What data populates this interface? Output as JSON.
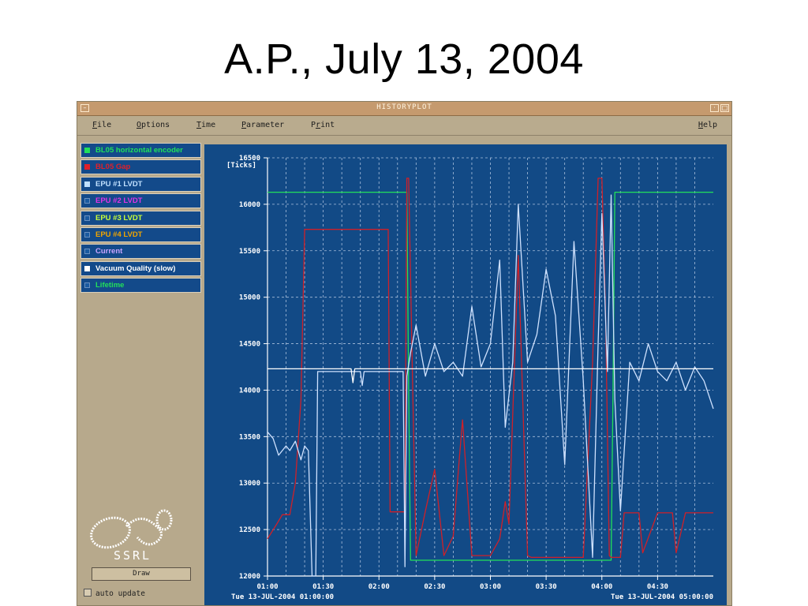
{
  "slide": {
    "title": "A.P., July 13, 2004"
  },
  "window": {
    "title": "HISTORYPLOT",
    "menu": [
      {
        "label": "File"
      },
      {
        "label": "Options"
      },
      {
        "label": "Time"
      },
      {
        "label": "Parameter"
      },
      {
        "label": "Print"
      }
    ],
    "help": "Help"
  },
  "parameters": [
    {
      "label": "BL05 horizontal encoder",
      "color": "#22e05a",
      "checked": true
    },
    {
      "label": "BL05 Gap",
      "color": "#e0202a",
      "checked": true
    },
    {
      "label": "EPU #1 LVDT",
      "color": "#bfe0ff",
      "checked": true
    },
    {
      "label": "EPU #2 LVDT",
      "color": "#e033e6",
      "checked": false
    },
    {
      "label": "EPU #3 LVDT",
      "color": "#c8ff3a",
      "checked": false
    },
    {
      "label": "EPU #4 LVDT",
      "color": "#f0a500",
      "checked": false
    },
    {
      "label": "Current",
      "color": "#c9a4ff",
      "checked": false
    },
    {
      "label": "Vacuum Quality (slow)",
      "color": "#ffffff",
      "checked": true
    },
    {
      "label": "Lifetime",
      "color": "#22e05a",
      "checked": false
    }
  ],
  "logo_text": "SSRL",
  "draw_label": "Draw",
  "auto_update_label": "auto update",
  "chart_data": {
    "type": "line",
    "ylabel": "[Ticks]",
    "ylim": [
      12000,
      16500
    ],
    "yticks": [
      12000,
      12500,
      13000,
      13500,
      14000,
      14500,
      15000,
      15500,
      16000,
      16500
    ],
    "xlim": [
      "01:00",
      "05:00"
    ],
    "xticks": [
      "01:00",
      "01:30",
      "02:00",
      "02:30",
      "03:00",
      "03:30",
      "04:00",
      "04:30"
    ],
    "start_label": "Tue 13-JUL-2004 01:00:00",
    "end_label": "Tue 13-JUL-2004 05:00:00",
    "grid": true,
    "background": "#124a86",
    "series": [
      {
        "name": "BL05 horizontal encoder",
        "color": "#22e05a",
        "x": [
          "01:00",
          "02:15",
          "02:16",
          "02:17",
          "04:05",
          "04:06",
          "04:07",
          "05:00"
        ],
        "y": [
          16130,
          16130,
          14000,
          12170,
          12170,
          14000,
          16130,
          16130
        ]
      },
      {
        "name": "BL05 Gap",
        "color": "#d02028",
        "x": [
          "01:00",
          "01:05",
          "01:08",
          "01:12",
          "01:15",
          "01:18",
          "01:20",
          "01:30",
          "01:40",
          "01:50",
          "02:00",
          "02:05",
          "02:06",
          "02:07",
          "02:10",
          "02:14",
          "02:15",
          "02:16",
          "02:18",
          "02:20",
          "02:25",
          "02:30",
          "02:35",
          "02:40",
          "02:43",
          "02:45",
          "02:50",
          "02:55",
          "03:00",
          "03:05",
          "03:08",
          "03:10",
          "03:15",
          "03:20",
          "03:22",
          "03:25",
          "03:30",
          "03:35",
          "03:40",
          "03:45",
          "03:50",
          "03:55",
          "03:58",
          "04:00",
          "04:02",
          "04:04",
          "04:05",
          "04:07",
          "04:10",
          "04:12",
          "04:15",
          "04:20",
          "04:22",
          "04:30",
          "04:35",
          "04:38",
          "04:40",
          "04:45",
          "05:00"
        ],
        "y": [
          12400,
          12560,
          12660,
          12660,
          13000,
          13900,
          15730,
          15730,
          15730,
          15730,
          15730,
          15730,
          12690,
          12690,
          12690,
          12690,
          16280,
          16280,
          14200,
          12220,
          12700,
          13150,
          12220,
          12430,
          13200,
          13680,
          12220,
          12220,
          12220,
          12400,
          12800,
          12560,
          15450,
          12220,
          12200,
          12200,
          12200,
          12200,
          12200,
          12200,
          12200,
          14300,
          16280,
          16280,
          14800,
          12220,
          12200,
          12200,
          12200,
          12680,
          12680,
          12680,
          12250,
          12680,
          12680,
          12680,
          12250,
          12680,
          12680
        ]
      },
      {
        "name": "EPU #1 LVDT",
        "color": "#cfe2ff",
        "x": [
          "01:00",
          "01:03",
          "01:06",
          "01:10",
          "01:12",
          "01:15",
          "01:18",
          "01:20",
          "01:22",
          "01:24",
          "01:25",
          "01:26",
          "01:27",
          "01:30",
          "01:45",
          "01:50",
          "01:51",
          "01:52",
          "02:00",
          "02:10",
          "02:13",
          "02:14",
          "02:15",
          "02:17",
          "02:20",
          "02:25",
          "02:30",
          "02:35",
          "02:40",
          "02:45",
          "02:50",
          "02:55",
          "03:00",
          "03:05",
          "03:08",
          "03:12",
          "03:15",
          "03:20",
          "03:25",
          "03:30",
          "03:35",
          "03:40",
          "03:45",
          "03:50",
          "03:55",
          "03:58",
          "04:00",
          "04:03",
          "04:05",
          "04:07",
          "04:10",
          "04:15",
          "04:20",
          "04:25",
          "04:30",
          "04:35",
          "04:40",
          "04:45",
          "04:50",
          "04:55",
          "05:00"
        ],
        "y": [
          13550,
          13480,
          13300,
          13400,
          13350,
          13450,
          13250,
          13400,
          13350,
          12000,
          12000,
          12000,
          14200,
          14200,
          14200,
          14200,
          14050,
          14200,
          14200,
          14200,
          14200,
          12100,
          14150,
          14400,
          14700,
          14150,
          14500,
          14200,
          14300,
          14150,
          14900,
          14250,
          14500,
          15400,
          13600,
          14300,
          16000,
          14300,
          14600,
          15300,
          14800,
          13200,
          15600,
          14100,
          12200,
          14500,
          15900,
          14200,
          16100,
          13900,
          12700,
          14300,
          14100,
          14500,
          14200,
          14100,
          14300,
          14000,
          14250,
          14100,
          13800
        ]
      },
      {
        "name": "Vacuum Quality (slow)",
        "color": "#ffffff",
        "x": [
          "01:00",
          "01:30",
          "01:45",
          "01:46",
          "01:47",
          "01:50",
          "02:00",
          "02:14",
          "02:15",
          "02:20",
          "02:30",
          "02:40",
          "02:50",
          "03:00",
          "03:05",
          "03:10",
          "03:14",
          "03:20",
          "03:30",
          "03:35",
          "03:38",
          "03:45",
          "03:50",
          "03:55",
          "04:00",
          "04:02",
          "04:04",
          "04:06",
          "04:08",
          "04:10",
          "04:12",
          "04:15",
          "04:20",
          "04:30",
          "04:40",
          "04:50",
          "05:00"
        ],
        "y": [
          14230,
          14230,
          14230,
          14080,
          14230,
          14230,
          14230,
          14230,
          14230,
          14230,
          14230,
          14230,
          14230,
          14230,
          14230,
          14230,
          14230,
          14230,
          14230,
          14230,
          14230,
          14230,
          14230,
          14230,
          14230,
          14230,
          14230,
          14230,
          14230,
          14230,
          14230,
          14230,
          14230,
          14230,
          14230,
          14230,
          14230
        ]
      }
    ]
  }
}
